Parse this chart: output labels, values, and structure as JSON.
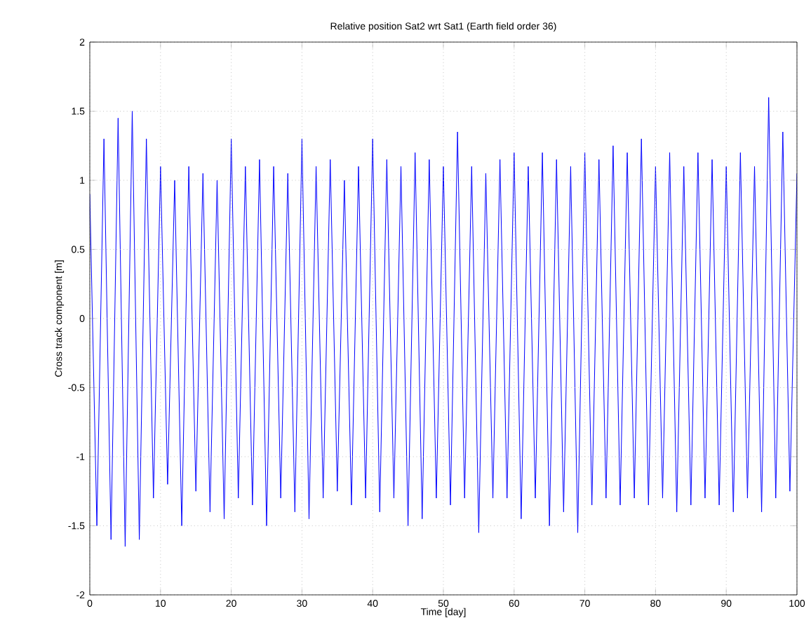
{
  "chart_data": {
    "type": "line",
    "title": "Relative position Sat2 wrt Sat1 (Earth field order 36)",
    "xlabel": "Time [day]",
    "ylabel": "Cross track component [m]",
    "x": [
      0,
      1,
      2,
      3,
      4,
      5,
      6,
      7,
      8,
      9,
      10,
      11,
      12,
      13,
      14,
      15,
      16,
      17,
      18,
      19,
      20,
      21,
      22,
      23,
      24,
      25,
      26,
      27,
      28,
      29,
      30,
      31,
      32,
      33,
      34,
      35,
      36,
      37,
      38,
      39,
      40,
      41,
      42,
      43,
      44,
      45,
      46,
      47,
      48,
      49,
      50,
      51,
      52,
      53,
      54,
      55,
      56,
      57,
      58,
      59,
      60,
      61,
      62,
      63,
      64,
      65,
      66,
      67,
      68,
      69,
      70,
      71,
      72,
      73,
      74,
      75,
      76,
      77,
      78,
      79,
      80,
      81,
      82,
      83,
      84,
      85,
      86,
      87,
      88,
      89,
      90,
      91,
      92,
      93,
      94,
      95,
      96,
      97,
      98,
      99,
      100
    ],
    "series": [
      {
        "color": "#0000ff",
        "values": [
          0.9,
          -1.5,
          1.3,
          -1.6,
          1.45,
          -1.65,
          1.5,
          -1.6,
          1.3,
          -1.3,
          1.1,
          -1.2,
          1.0,
          -1.5,
          1.1,
          -1.25,
          1.05,
          -1.4,
          1.0,
          -1.45,
          1.3,
          -1.3,
          1.1,
          -1.35,
          1.15,
          -1.5,
          1.1,
          -1.3,
          1.05,
          -1.4,
          1.3,
          -1.45,
          1.1,
          -1.3,
          1.15,
          -1.25,
          1.0,
          -1.35,
          1.1,
          -1.3,
          1.3,
          -1.4,
          1.15,
          -1.3,
          1.1,
          -1.5,
          1.2,
          -1.45,
          1.15,
          -1.3,
          1.1,
          -1.35,
          1.35,
          -1.3,
          1.1,
          -1.55,
          1.05,
          -1.3,
          1.15,
          -1.3,
          1.2,
          -1.45,
          1.1,
          -1.3,
          1.2,
          -1.5,
          1.15,
          -1.4,
          1.1,
          -1.55,
          1.2,
          -1.35,
          1.15,
          -1.3,
          1.25,
          -1.35,
          1.2,
          -1.3,
          1.3,
          -1.35,
          1.1,
          -1.3,
          1.2,
          -1.4,
          1.1,
          -1.35,
          1.2,
          -1.3,
          1.15,
          -1.35,
          1.1,
          -1.4,
          1.2,
          -1.3,
          1.1,
          -1.4,
          1.6,
          -1.3,
          1.35,
          -1.25,
          1.05
        ]
      }
    ],
    "xlim": [
      0,
      100
    ],
    "xticks": [
      0,
      10,
      20,
      30,
      40,
      50,
      60,
      70,
      80,
      90,
      100
    ],
    "ylim": [
      -2,
      2
    ],
    "yticks": [
      -2,
      -1.5,
      -1,
      -0.5,
      0,
      0.5,
      1,
      1.5,
      2
    ],
    "grid": true,
    "marker": "none",
    "line_style": "solid"
  }
}
